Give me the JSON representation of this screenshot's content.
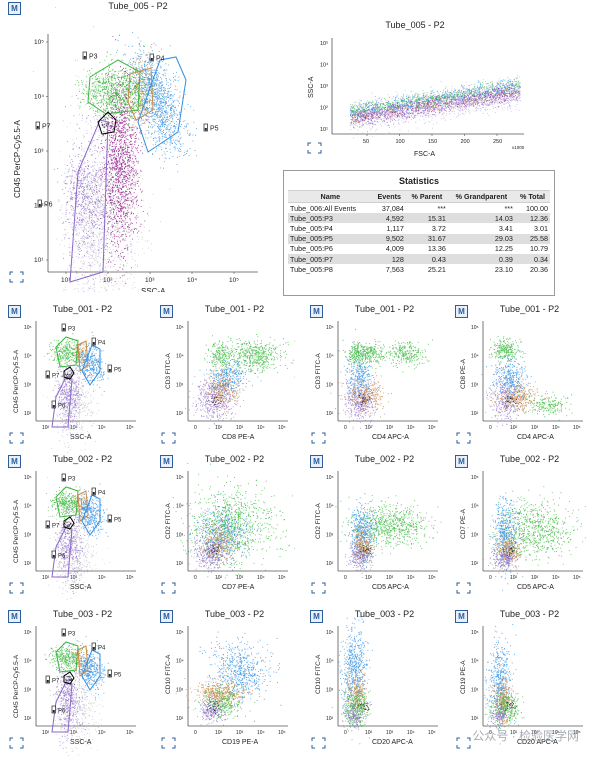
{
  "colors": {
    "purple": "#8b67c8",
    "lavender": "#b7a6dd",
    "magenta": "#8b0f85",
    "green": "#39b83b",
    "orange": "#c98b4a",
    "blue": "#2f8fe3",
    "gray": "#9a9a9a",
    "black": "#000000"
  },
  "badge_letter": "M",
  "top_scatter": {
    "title": "Tube_005 - P2",
    "xlabel": "SSC-A",
    "ylabel": "CD45 PerCP-Cy5.5-A",
    "xticks": [
      "10¹",
      "10²",
      "10³",
      "10⁴",
      "10⁵"
    ],
    "yticks": [
      "10⁵",
      "10⁴",
      "10³",
      "10²",
      "10¹"
    ],
    "gates": [
      "P3",
      "P4",
      "P5",
      "P6",
      "P7"
    ]
  },
  "fsc_ssc": {
    "title": "Tube_005 - P2",
    "xlabel": "FSC-A",
    "ylabel": "SSC-A",
    "xticks": [
      "50",
      "100",
      "150",
      "200",
      "250"
    ],
    "xmult": "x1000",
    "yticks": [
      "10⁵",
      "10⁴",
      "10³",
      "10²",
      "10¹"
    ]
  },
  "statistics": {
    "title": "Statistics",
    "headers": [
      "Name",
      "Events",
      "% Parent",
      "% Grandparent",
      "% Total"
    ],
    "rows": [
      [
        "Tube_006:All Events",
        "37,084",
        "***",
        "***",
        "100.00"
      ],
      [
        "Tube_005:P3",
        "4,592",
        "15.31",
        "14.03",
        "12.36"
      ],
      [
        "Tube_005:P4",
        "1,117",
        "3.72",
        "3.41",
        "3.01"
      ],
      [
        "Tube_005:P5",
        "9,502",
        "31.67",
        "29.03",
        "25.58"
      ],
      [
        "Tube_005:P6",
        "4,009",
        "13.36",
        "12.25",
        "10.79"
      ],
      [
        "Tube_005:P7",
        "128",
        "0.43",
        "0.39",
        "0.34"
      ],
      [
        "Tube_005:P8",
        "7,563",
        "25.21",
        "23.10",
        "20.36"
      ]
    ]
  },
  "grid": [
    {
      "title": "Tube_001 - P2",
      "xlabel": "SSC-A",
      "ylabel": "CD45 PerCP-Cy5.5-A",
      "gate": true
    },
    {
      "title": "Tube_001 - P2",
      "xlabel": "CD8 PE-A",
      "ylabel": "CD3 FITC-A"
    },
    {
      "title": "Tube_001 - P2",
      "xlabel": "CD4 APC-A",
      "ylabel": "CD3 FITC-A"
    },
    {
      "title": "Tube_001 - P2",
      "xlabel": "CD4 APC-A",
      "ylabel": "CD8 PE-A"
    },
    {
      "title": "Tube_002 - P2",
      "xlabel": "SSC-A",
      "ylabel": "CD45 PerCP-Cy5.5-A",
      "gate": true
    },
    {
      "title": "Tube_002 - P2",
      "xlabel": "CD7 PE-A",
      "ylabel": "CD2 FITC-A"
    },
    {
      "title": "Tube_002 - P2",
      "xlabel": "CD5 APC-A",
      "ylabel": "CD2 FITC-A"
    },
    {
      "title": "Tube_002 - P2",
      "xlabel": "CD5 APC-A",
      "ylabel": "CD7 PE-A"
    },
    {
      "title": "Tube_003 - P2",
      "xlabel": "SSC-A",
      "ylabel": "CD45 PerCP-Cy5.5-A",
      "gate": true
    },
    {
      "title": "Tube_003 - P2",
      "xlabel": "CD19 PE-A",
      "ylabel": "CD10 FITC-A"
    },
    {
      "title": "Tube_003 - P2",
      "xlabel": "CD20 APC-A",
      "ylabel": "CD10 FITC-A"
    },
    {
      "title": "Tube_003 - P2",
      "xlabel": "CD20 APC-A",
      "ylabel": "CD19 PE-A"
    }
  ],
  "small_gates": [
    "P3",
    "P4",
    "P5",
    "P6",
    "P7"
  ],
  "log_ticks_small": [
    "10²",
    "10³",
    "10⁴",
    "10⁵"
  ],
  "log_ticks_small_x": [
    "0",
    "10²",
    "10³",
    "10⁴",
    "10⁵"
  ],
  "watermark": "公众号 · 检验医学网",
  "chart_data": [
    {
      "type": "scatter",
      "title": "Tube_005 - P2",
      "xlabel": "SSC-A",
      "ylabel": "CD45 PerCP-Cy5.5-A",
      "xscale": "log",
      "yscale": "log",
      "xlim": [
        10,
        100000
      ],
      "ylim": [
        10,
        100000
      ],
      "gates": [
        "P3",
        "P4",
        "P5",
        "P6",
        "P7"
      ]
    },
    {
      "type": "scatter",
      "title": "Tube_005 - P2",
      "xlabel": "FSC-A",
      "ylabel": "SSC-A",
      "xlim": [
        0,
        260000
      ],
      "yscale": "log",
      "ylim": [
        10,
        100000
      ]
    },
    {
      "type": "table",
      "title": "Statistics",
      "columns": [
        "Name",
        "Events",
        "% Parent",
        "% Grandparent",
        "% Total"
      ],
      "rows": [
        [
          "Tube_006:All Events",
          37084,
          null,
          null,
          100.0
        ],
        [
          "Tube_005:P3",
          4592,
          15.31,
          14.03,
          12.36
        ],
        [
          "Tube_005:P4",
          1117,
          3.72,
          3.41,
          3.01
        ],
        [
          "Tube_005:P5",
          9502,
          31.67,
          29.03,
          25.58
        ],
        [
          "Tube_005:P6",
          4009,
          13.36,
          12.25,
          10.79
        ],
        [
          "Tube_005:P7",
          128,
          0.43,
          0.39,
          0.34
        ],
        [
          "Tube_005:P8",
          7563,
          25.21,
          23.1,
          20.36
        ]
      ]
    }
  ]
}
